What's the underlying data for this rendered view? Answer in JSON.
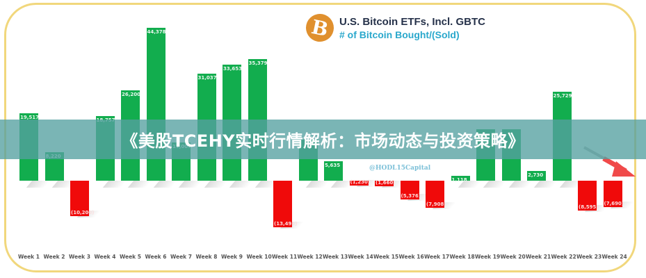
{
  "header": {
    "title": "U.S. Bitcoin ETFs, Incl. GBTC",
    "subtitle": "# of Bitcoin Bought/(Sold)",
    "logo_icon": "bitcoin-icon",
    "logo_glyph": "B"
  },
  "watermark": "@HODL15Capital",
  "banner": {
    "text": "《美股TCEHY实时行情解析：市场动态与投资策略》"
  },
  "colors": {
    "positive": "#12ad4e",
    "negative": "#f00a0a",
    "frame": "#f1d77c",
    "banner": "#54a0a0",
    "title": "#26324a",
    "subtitle": "#2aa8cc",
    "arrow": "#f04a4a"
  },
  "chart_data": {
    "type": "bar",
    "title": "U.S. Bitcoin ETFs, Incl. GBTC",
    "subtitle": "# of Bitcoin Bought/(Sold)",
    "xlabel": "",
    "ylabel": "",
    "categories": [
      "Week 1",
      "Week 2",
      "Week 3",
      "Week 4",
      "Week 5",
      "Week 6",
      "Week 7",
      "Week 8",
      "Week 9",
      "Week 10",
      "Week 11",
      "Week 12",
      "Week 13",
      "Week 14",
      "Week 15",
      "Week 16",
      "Week 17",
      "Week 18",
      "Week 19",
      "Week 20",
      "Week 21",
      "Week 22",
      "Week 23",
      "Week 24"
    ],
    "values": [
      19517,
      8220,
      -10200,
      18757,
      26200,
      44378,
      11007,
      31037,
      33653,
      35379,
      -13495,
      12000,
      5635,
      -1230,
      -1660,
      -5376,
      -7908,
      1118,
      15000,
      15000,
      2730,
      25729,
      -8595,
      -7690
    ],
    "labels": [
      "19,517",
      "8,220",
      "(10,200)",
      "18,757",
      "26,200",
      "44,378",
      "11,007",
      "31,037",
      "33,653",
      "35,379",
      "(13,495)",
      "",
      "5,635",
      "(1,230)",
      "(1,660)",
      "(5,376)",
      "(7,908)",
      "1,118",
      "",
      "",
      "2,730",
      "25,729",
      "(8,595)",
      "(7,690)"
    ],
    "ylim": [
      -14000,
      46000
    ],
    "grid": false,
    "legend": "none",
    "annotations": [
      "@HODL15Capital",
      "red down-trend arrow after Week 22"
    ]
  }
}
